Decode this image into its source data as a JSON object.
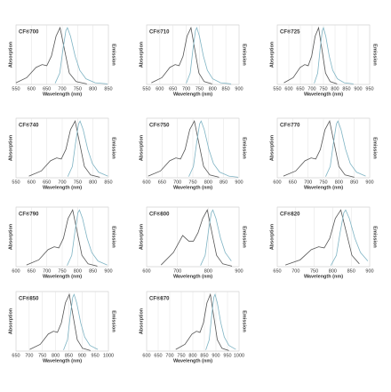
{
  "chart_data": [
    {
      "type": "line",
      "title": "CF®700",
      "xlabel": "Wavelength (nm)",
      "ylabel": "Absorption",
      "y2label": "Emission",
      "xlim": [
        550,
        850
      ],
      "xticks": [
        550,
        600,
        650,
        700,
        750,
        800,
        850
      ],
      "ylim": [
        0,
        1.05
      ],
      "y2lim": [
        0,
        1.05
      ],
      "grid": true,
      "series": [
        {
          "color": "#555555",
          "x": [
            550,
            585,
            615,
            635,
            650,
            665,
            680,
            693,
            708,
            723,
            745,
            780
          ],
          "values": [
            0.03,
            0.12,
            0.3,
            0.35,
            0.33,
            0.5,
            0.85,
            1,
            0.6,
            0.2,
            0.05,
            0.01
          ]
        },
        {
          "color": "#7fb4c4",
          "axis": "y2",
          "x": [
            677,
            692,
            702,
            712,
            717,
            727,
            742,
            757,
            777,
            807,
            847
          ],
          "values": [
            0.02,
            0.2,
            0.6,
            0.95,
            1,
            0.85,
            0.5,
            0.25,
            0.1,
            0.03,
            0.01
          ]
        }
      ]
    },
    {
      "type": "line",
      "title": "CF®710",
      "xlabel": "Wavelength (nm)",
      "ylabel": "Absorption",
      "y2label": "Emission",
      "xlim": [
        550,
        900
      ],
      "xticks": [
        550,
        600,
        650,
        700,
        750,
        800,
        850,
        900
      ],
      "ylim": [
        0,
        1.05
      ],
      "y2lim": [
        0,
        1.05
      ],
      "grid": true,
      "series": [
        {
          "color": "#555555",
          "x": [
            568,
            608,
            638,
            658,
            673,
            688,
            703,
            718,
            733,
            748,
            768,
            798
          ],
          "values": [
            0.03,
            0.12,
            0.3,
            0.35,
            0.33,
            0.5,
            0.85,
            1,
            0.6,
            0.2,
            0.05,
            0.01
          ]
        },
        {
          "color": "#7fb4c4",
          "axis": "y2",
          "x": [
            700,
            715,
            725,
            735,
            740,
            750,
            765,
            780,
            800,
            830,
            870
          ],
          "values": [
            0.02,
            0.2,
            0.6,
            0.95,
            1,
            0.85,
            0.5,
            0.25,
            0.1,
            0.03,
            0.01
          ]
        }
      ]
    },
    {
      "type": "line",
      "title": "CF®725",
      "xlabel": "Wavelength (nm)",
      "ylabel": "Absorption",
      "y2label": "Emission",
      "xlim": [
        550,
        950
      ],
      "xticks": [
        550,
        600,
        650,
        700,
        750,
        800,
        850,
        900,
        950
      ],
      "ylim": [
        0,
        1.05
      ],
      "y2lim": [
        0,
        1.05
      ],
      "grid": true,
      "series": [
        {
          "color": "#555555",
          "x": [
            579,
            619,
            649,
            669,
            684,
            699,
            714,
            729,
            744,
            759,
            779,
            809
          ],
          "values": [
            0.03,
            0.12,
            0.3,
            0.35,
            0.33,
            0.5,
            0.85,
            1,
            0.6,
            0.2,
            0.05,
            0.01
          ]
        },
        {
          "color": "#7fb4c4",
          "axis": "y2",
          "x": [
            710,
            725,
            735,
            745,
            750,
            760,
            775,
            790,
            810,
            840,
            880
          ],
          "values": [
            0.02,
            0.2,
            0.6,
            0.95,
            1,
            0.85,
            0.5,
            0.25,
            0.1,
            0.03,
            0.01
          ]
        }
      ]
    },
    {
      "type": "line",
      "title": "CF®740",
      "xlabel": "Wavelength (nm)",
      "ylabel": "Absorption",
      "y2label": "Emission",
      "xlim": [
        550,
        850
      ],
      "xticks": [
        550,
        600,
        650,
        700,
        750,
        800,
        850
      ],
      "ylim": [
        0,
        1.05
      ],
      "y2lim": [
        0,
        1.05
      ],
      "grid": true,
      "series": [
        {
          "color": "#555555",
          "x": [
            592,
            632,
            662,
            682,
            697,
            712,
            727,
            742,
            757,
            772,
            792,
            822
          ],
          "values": [
            0.03,
            0.12,
            0.3,
            0.35,
            0.33,
            0.5,
            0.85,
            1,
            0.6,
            0.2,
            0.05,
            0.01
          ]
        },
        {
          "color": "#7fb4c4",
          "axis": "y2",
          "x": [
            718,
            733,
            743,
            753,
            758,
            768,
            783,
            798,
            818,
            848
          ],
          "values": [
            0.02,
            0.2,
            0.6,
            0.95,
            1,
            0.85,
            0.5,
            0.25,
            0.1,
            0.03
          ]
        }
      ]
    },
    {
      "type": "line",
      "title": "CF®750",
      "xlabel": "Wavelength (nm)",
      "ylabel": "Absorption",
      "y2label": "Emission",
      "xlim": [
        600,
        900
      ],
      "xticks": [
        600,
        650,
        700,
        750,
        800,
        850,
        900
      ],
      "ylim": [
        0,
        1.05
      ],
      "y2lim": [
        0,
        1.05
      ],
      "grid": true,
      "series": [
        {
          "color": "#555555",
          "x": [
            605,
            645,
            675,
            695,
            710,
            725,
            740,
            755,
            770,
            785,
            805,
            835
          ],
          "values": [
            0.03,
            0.12,
            0.3,
            0.35,
            0.33,
            0.5,
            0.85,
            1,
            0.6,
            0.2,
            0.05,
            0.01
          ]
        },
        {
          "color": "#7fb4c4",
          "axis": "y2",
          "x": [
            737,
            752,
            762,
            772,
            777,
            787,
            802,
            817,
            837,
            867,
            897
          ],
          "values": [
            0.02,
            0.2,
            0.6,
            0.95,
            1,
            0.85,
            0.5,
            0.25,
            0.1,
            0.03,
            0.01
          ]
        }
      ]
    },
    {
      "type": "line",
      "title": "CF®770",
      "xlabel": "Wavelength (nm)",
      "ylabel": "Absorption",
      "y2label": "Emission",
      "xlim": [
        600,
        900
      ],
      "xticks": [
        600,
        650,
        700,
        750,
        800,
        850,
        900
      ],
      "ylim": [
        0,
        1.05
      ],
      "y2lim": [
        0,
        1.05
      ],
      "grid": true,
      "series": [
        {
          "color": "#555555",
          "x": [
            620,
            660,
            690,
            710,
            725,
            740,
            755,
            770,
            785,
            800,
            820,
            850
          ],
          "values": [
            0.03,
            0.12,
            0.3,
            0.35,
            0.33,
            0.5,
            0.85,
            1,
            0.6,
            0.2,
            0.05,
            0.01
          ]
        },
        {
          "color": "#7fb4c4",
          "axis": "y2",
          "x": [
            757,
            772,
            782,
            792,
            797,
            807,
            822,
            837,
            857,
            887
          ],
          "values": [
            0.02,
            0.2,
            0.6,
            0.95,
            1,
            0.85,
            0.5,
            0.25,
            0.1,
            0.03
          ]
        }
      ]
    },
    {
      "type": "line",
      "title": "CF®790",
      "xlabel": "Wavelength (nm)",
      "ylabel": "Absorption",
      "y2label": "Emission",
      "xlim": [
        600,
        900
      ],
      "xticks": [
        600,
        650,
        700,
        750,
        800,
        850,
        900
      ],
      "ylim": [
        0,
        1.05
      ],
      "y2lim": [
        0,
        1.05
      ],
      "grid": true,
      "series": [
        {
          "color": "#555555",
          "x": [
            634,
            674,
            704,
            724,
            739,
            754,
            769,
            784,
            799,
            814,
            834,
            864
          ],
          "values": [
            0.03,
            0.12,
            0.3,
            0.35,
            0.33,
            0.5,
            0.85,
            1,
            0.6,
            0.2,
            0.05,
            0.01
          ]
        },
        {
          "color": "#7fb4c4",
          "axis": "y2",
          "x": [
            766,
            781,
            791,
            801,
            806,
            816,
            831,
            846,
            866,
            896
          ],
          "values": [
            0.02,
            0.2,
            0.6,
            0.95,
            1,
            0.85,
            0.5,
            0.25,
            0.1,
            0.03
          ]
        }
      ]
    },
    {
      "type": "line",
      "title": "CF®800",
      "xlabel": "Wavelength (nm)",
      "ylabel": "Absorption",
      "y2label": "Emission",
      "xlim": [
        600,
        900
      ],
      "xticks": [
        600,
        700,
        800,
        900
      ],
      "ylim": [
        0,
        1.05
      ],
      "y2lim": [
        0,
        1.05
      ],
      "grid": true,
      "series": [
        {
          "color": "#555555",
          "x": [
            647,
            687,
            717,
            737,
            752,
            767,
            782,
            797,
            812,
            827,
            847,
            877
          ],
          "values": [
            0.03,
            0.25,
            0.55,
            0.45,
            0.45,
            0.6,
            0.85,
            1,
            0.6,
            0.2,
            0.05,
            0.01
          ]
        },
        {
          "color": "#7fb4c4",
          "axis": "y2",
          "x": [
            775,
            790,
            800,
            810,
            815,
            825,
            840,
            855,
            875
          ],
          "values": [
            0.02,
            0.2,
            0.6,
            0.95,
            1,
            0.85,
            0.5,
            0.25,
            0.1
          ]
        }
      ]
    },
    {
      "type": "line",
      "title": "CF®820",
      "xlabel": "Wavelength (nm)",
      "ylabel": "Absorption",
      "y2label": "Emission",
      "xlim": [
        650,
        900
      ],
      "xticks": [
        650,
        700,
        750,
        800,
        850,
        900
      ],
      "ylim": [
        0,
        1.05
      ],
      "y2lim": [
        0,
        1.05
      ],
      "grid": true,
      "series": [
        {
          "color": "#555555",
          "x": [
            672,
            712,
            742,
            762,
            777,
            792,
            807,
            822,
            837,
            852,
            872
          ],
          "values": [
            0.03,
            0.12,
            0.3,
            0.35,
            0.33,
            0.5,
            0.85,
            1,
            0.6,
            0.2,
            0.05
          ]
        },
        {
          "color": "#7fb4c4",
          "axis": "y2",
          "x": [
            795,
            810,
            820,
            830,
            835,
            845,
            860,
            875,
            895
          ],
          "values": [
            0.02,
            0.2,
            0.6,
            0.95,
            1,
            0.85,
            0.5,
            0.25,
            0.1
          ]
        }
      ]
    },
    {
      "type": "line",
      "title": "CF®850",
      "xlabel": "Wavelength (nm)",
      "ylabel": "Absorption",
      "y2label": "Emission",
      "xlim": [
        650,
        1000
      ],
      "xticks": [
        650,
        700,
        750,
        800,
        850,
        900,
        950,
        1000
      ],
      "ylim": [
        0,
        1.05
      ],
      "y2lim": [
        0,
        1.05
      ],
      "grid": true,
      "series": [
        {
          "color": "#555555",
          "x": [
            702,
            742,
            772,
            792,
            807,
            822,
            837,
            852,
            867,
            882,
            902,
            932
          ],
          "values": [
            0.03,
            0.12,
            0.3,
            0.35,
            0.33,
            0.5,
            0.85,
            1,
            0.6,
            0.2,
            0.05,
            0.01
          ]
        },
        {
          "color": "#7fb4c4",
          "axis": "y2",
          "x": [
            830,
            845,
            855,
            865,
            870,
            880,
            895,
            910,
            930,
            960
          ],
          "values": [
            0.02,
            0.2,
            0.6,
            0.95,
            1,
            0.85,
            0.5,
            0.25,
            0.1,
            0.03
          ]
        }
      ]
    },
    {
      "type": "line",
      "title": "CF®870",
      "xlabel": "Wavelength (nm)",
      "ylabel": "Absorption",
      "y2label": "Emission",
      "xlim": [
        600,
        1000
      ],
      "xticks": [
        600,
        650,
        700,
        750,
        800,
        850,
        900,
        950,
        1000
      ],
      "ylim": [
        0,
        1.05
      ],
      "y2lim": [
        0,
        1.05
      ],
      "grid": true,
      "series": [
        {
          "color": "#555555",
          "x": [
            726,
            766,
            796,
            816,
            831,
            846,
            861,
            876,
            891,
            906,
            926,
            956
          ],
          "values": [
            0.03,
            0.12,
            0.3,
            0.35,
            0.33,
            0.5,
            0.85,
            1,
            0.6,
            0.2,
            0.05,
            0.01
          ]
        },
        {
          "color": "#7fb4c4",
          "axis": "y2",
          "x": [
            856,
            871,
            881,
            891,
            896,
            906,
            921,
            936,
            956,
            986
          ],
          "values": [
            0.02,
            0.2,
            0.6,
            0.95,
            1,
            0.85,
            0.5,
            0.25,
            0.1,
            0.03
          ]
        }
      ]
    }
  ]
}
